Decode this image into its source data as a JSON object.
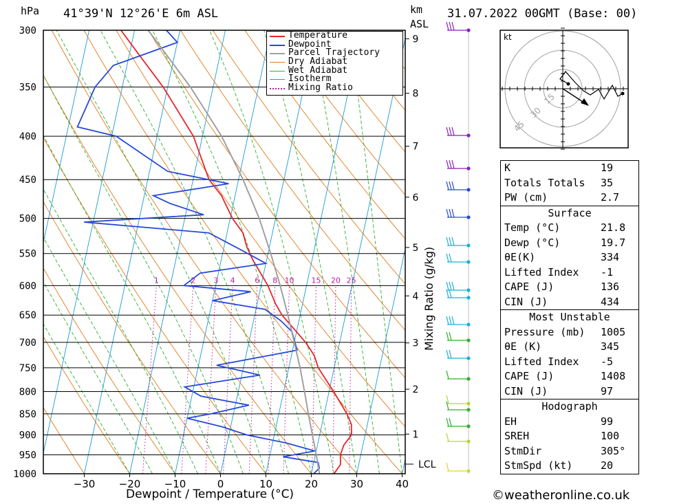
{
  "header": {
    "hpa_label": "hPa",
    "location": "41°39'N 12°26'E 6m ASL",
    "km_label": "km",
    "asl_label": "ASL",
    "datetime": "31.07.2022 00GMT (Base: 00)"
  },
  "footer": {
    "copyright": "©weatheronline.co.uk"
  },
  "chart_data": {
    "type": "line",
    "subtype": "skew-T log-P diagram",
    "title": "41°39'N 12°26'E 6m ASL",
    "xlabel": "Dewpoint / Temperature (°C)",
    "ylabel": "hPa",
    "right_ylabel": "Mixing Ratio (g/kg)",
    "temperature_ticks": [
      -30,
      -20,
      -10,
      0,
      10,
      20,
      30,
      40
    ],
    "pressure_ticks": [
      300,
      350,
      400,
      450,
      500,
      550,
      600,
      650,
      700,
      750,
      800,
      850,
      900,
      950,
      1000
    ],
    "km_ticks": [
      1,
      2,
      3,
      4,
      5,
      6,
      7,
      8,
      9
    ],
    "lcl_label": "LCL",
    "mixing_ratio_labels": [
      "1",
      "2",
      "3",
      "4",
      "6",
      "8",
      "10",
      "15",
      "20",
      "25"
    ],
    "legend": [
      {
        "name": "Temperature",
        "color": "#e8232a"
      },
      {
        "name": "Dewpoint",
        "color": "#2649d9"
      },
      {
        "name": "Parcel Trajectory",
        "color": "#a0a0a0"
      },
      {
        "name": "Dry Adiabat",
        "color": "#e07b1c"
      },
      {
        "name": "Wet Adiabat",
        "color": "#2fae2f"
      },
      {
        "name": "Isotherm",
        "color": "#1a9ad6"
      },
      {
        "name": "Mixing Ratio",
        "color": "#c2189b"
      }
    ],
    "series": [
      {
        "name": "Temperature",
        "pressure": [
          1000,
          975,
          950,
          925,
          900,
          875,
          850,
          800,
          750,
          725,
          700,
          650,
          630,
          600,
          560,
          540,
          520,
          500,
          470,
          450,
          400,
          350,
          320,
          300
        ],
        "values": [
          25.0,
          26.0,
          25.5,
          25.8,
          27.0,
          26.5,
          25.0,
          21.0,
          16.5,
          15.0,
          12.5,
          6.0,
          4.0,
          1.5,
          -3.0,
          -5.0,
          -6.5,
          -9.5,
          -13.0,
          -16.5,
          -22.0,
          -31.0,
          -38.0,
          -43.0
        ]
      },
      {
        "name": "Dewpoint",
        "pressure": [
          1000,
          985,
          970,
          955,
          940,
          920,
          900,
          880,
          860,
          850,
          830,
          810,
          790,
          765,
          745,
          715,
          680,
          660,
          640,
          625,
          610,
          600,
          580,
          565,
          545,
          520,
          505,
          495,
          480,
          470,
          455,
          440,
          400,
          390,
          350,
          330,
          310,
          300
        ],
        "values": [
          20.5,
          21.5,
          21.0,
          13.0,
          19.7,
          13.0,
          4.0,
          -2.0,
          -10.0,
          -5.0,
          3.0,
          -8.0,
          -12.0,
          4.0,
          -6.0,
          11.0,
          9.0,
          6.0,
          2.0,
          -10.0,
          -2.0,
          -17.0,
          -14.0,
          0.0,
          -6.0,
          -14.0,
          -42.0,
          -16.0,
          -24.0,
          -28.0,
          -12.0,
          -26.0,
          -39.0,
          -48.0,
          -46.0,
          -43.0,
          -30.0,
          -33.0
        ]
      },
      {
        "name": "Parcel Trajectory",
        "pressure": [
          1000,
          950,
          900,
          850,
          800,
          750,
          700,
          650,
          600,
          550,
          500,
          450,
          400,
          350,
          300
        ],
        "values": [
          21.8,
          20.2,
          18.4,
          16.5,
          14.6,
          12.5,
          10.0,
          7.3,
          4.2,
          0.6,
          -3.6,
          -9.0,
          -15.8,
          -25.0,
          -37.0
        ]
      }
    ]
  },
  "hodograph": {
    "unit_label": "kt",
    "ring_labels": [
      "15",
      "30",
      "45"
    ]
  },
  "indices": {
    "general": [
      {
        "label": "K",
        "value": "19"
      },
      {
        "label": "Totals Totals",
        "value": "35"
      },
      {
        "label": "PW (cm)",
        "value": "2.7"
      }
    ],
    "surface_title": "Surface",
    "surface": [
      {
        "label": "Temp (°C)",
        "value": "21.8"
      },
      {
        "label": "Dewp (°C)",
        "value": "19.7"
      },
      {
        "label": "θE(K)",
        "value": "334"
      },
      {
        "label": "Lifted Index",
        "value": "-1"
      },
      {
        "label": "CAPE (J)",
        "value": "136"
      },
      {
        "label": "CIN (J)",
        "value": "434"
      }
    ],
    "mu_title": "Most Unstable",
    "most_unstable": [
      {
        "label": "Pressure (mb)",
        "value": "1005"
      },
      {
        "label": "θE (K)",
        "value": "345"
      },
      {
        "label": "Lifted Index",
        "value": "-5"
      },
      {
        "label": "CAPE (J)",
        "value": "1408"
      },
      {
        "label": "CIN (J)",
        "value": "97"
      }
    ],
    "hodo_title": "Hodograph",
    "hodograph_params": [
      {
        "label": "EH",
        "value": "99"
      },
      {
        "label": "SREH",
        "value": "100"
      },
      {
        "label": "StmDir",
        "value": "305°"
      },
      {
        "label": "StmSpd (kt)",
        "value": "20"
      }
    ]
  }
}
